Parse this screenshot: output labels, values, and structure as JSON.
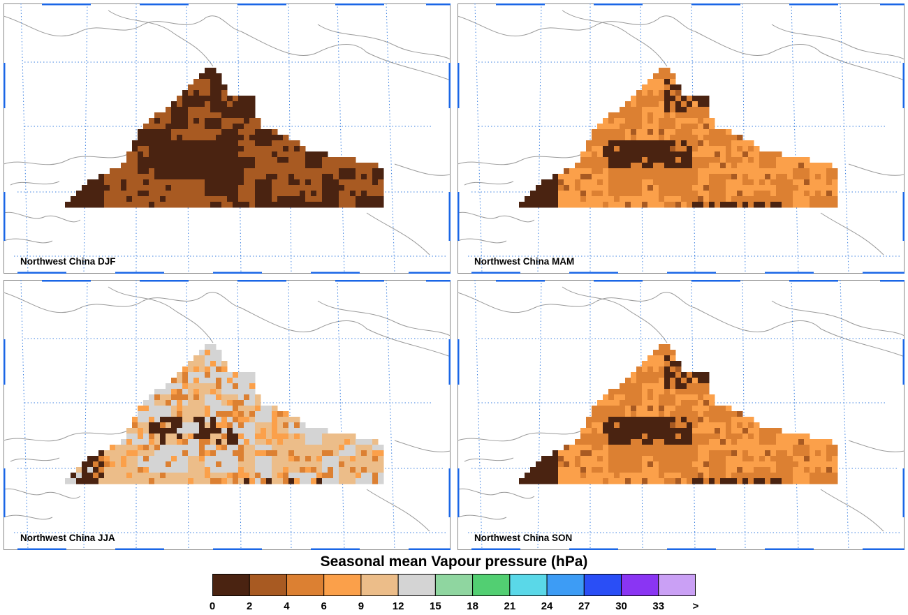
{
  "panels": [
    {
      "label": "Northwest China DJF",
      "season": "DJF"
    },
    {
      "label": "Northwest China MAM",
      "season": "MAM"
    },
    {
      "label": "Northwest China JJA",
      "season": "JJA"
    },
    {
      "label": "Northwest China SON",
      "season": "SON"
    }
  ],
  "legend": {
    "title": "Seasonal mean Vapour pressure (hPa)",
    "ticks": [
      "0",
      "2",
      "4",
      "6",
      "9",
      "12",
      "15",
      "18",
      "21",
      "24",
      "27",
      "30",
      "33",
      ">"
    ],
    "colors": [
      "#4a2311",
      "#a85a22",
      "#dc8032",
      "#fba04a",
      "#ecbd89",
      "#d4d4d4",
      "#8fd6a0",
      "#52cf72",
      "#5ad8e8",
      "#3d9cf5",
      "#2a4ef6",
      "#8a35f3",
      "#caa0f5"
    ]
  },
  "map_style": {
    "border": "#1a66e6",
    "grid": "#3a7fe0",
    "coast": "#9a9a9a"
  }
}
